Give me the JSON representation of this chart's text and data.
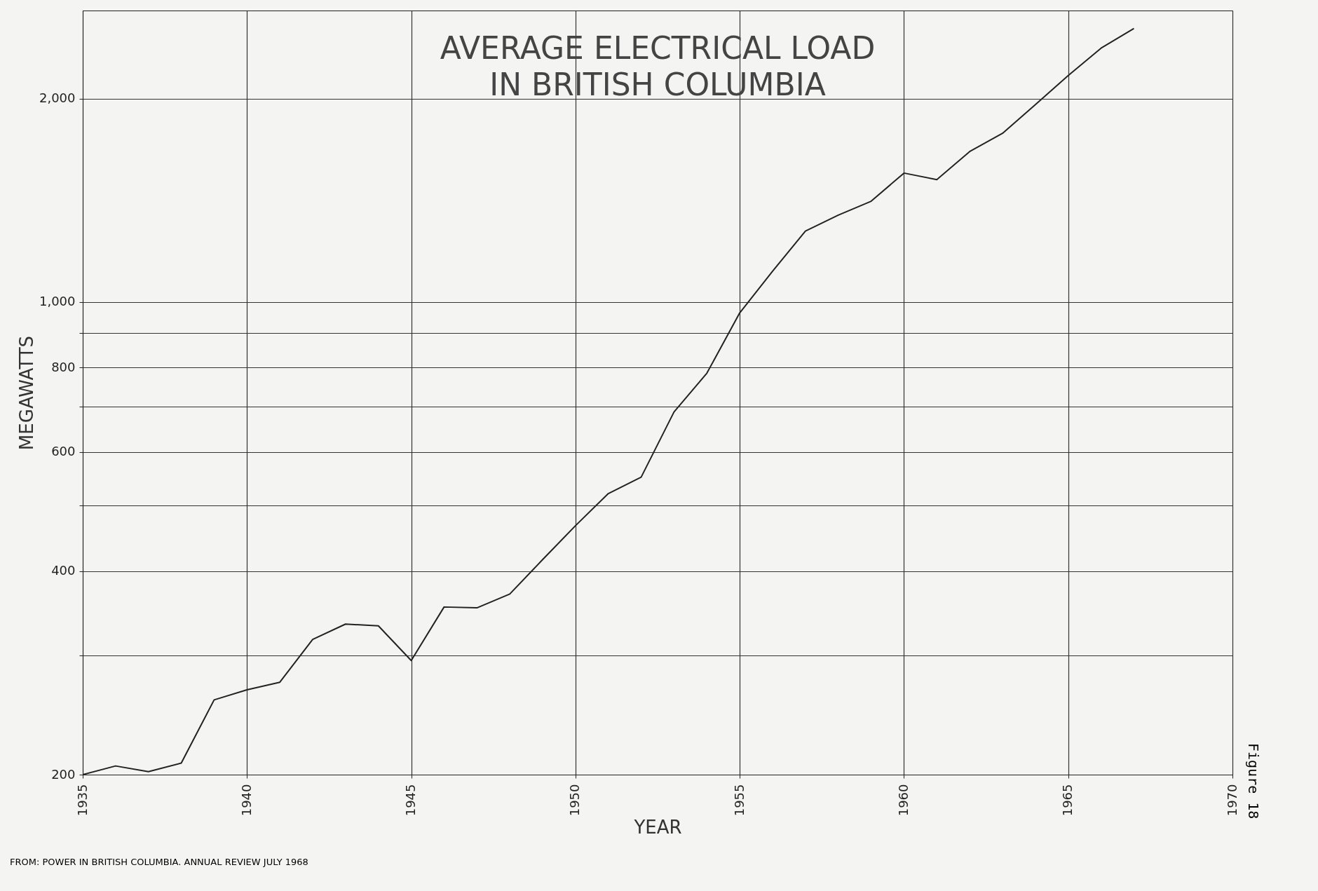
{
  "chart_data": {
    "type": "line",
    "title": "AVERAGE ELECTRICAL LOAD\nIN BRITISH COLUMBIA",
    "xlabel": "YEAR",
    "ylabel": "MEGAWATTS",
    "x": [
      1935,
      1936,
      1937,
      1938,
      1939,
      1940,
      1941,
      1942,
      1943,
      1944,
      1945,
      1946,
      1947,
      1948,
      1949,
      1950,
      1951,
      1952,
      1953,
      1954,
      1955,
      1956,
      1957,
      1958,
      1959,
      1960,
      1961,
      1962,
      1963,
      1964,
      1965,
      1966,
      1967
    ],
    "series": [
      {
        "color": "#222222",
        "values": [
          200,
          206,
          202,
          208,
          258,
          267,
          274,
          317,
          334,
          332,
          295,
          354,
          353,
          370,
          416,
          467,
          521,
          551,
          688,
          785,
          964,
          1111,
          1274,
          1345,
          1410,
          1552,
          1518,
          1670,
          1777,
          1959,
          2164,
          2375,
          2540
        ]
      }
    ],
    "xlim": [
      1935,
      1970
    ],
    "xticks": [
      1935,
      1940,
      1945,
      1950,
      1955,
      1960,
      1965,
      1970
    ],
    "log": true,
    "ylim": [
      200,
      2700
    ],
    "yticks": [
      200,
      {
        "value": 300,
        "label": null
      },
      400,
      {
        "value": 500,
        "label": null
      },
      600,
      {
        "value": 700,
        "label": null
      },
      800,
      {
        "value": 900,
        "label": null
      },
      {
        "value": 1000,
        "label": "1,000"
      },
      {
        "value": 2000,
        "label": "2,000"
      }
    ],
    "grid": true,
    "marker": "none",
    "line_style": "solid",
    "annotations": [
      "FROM: POWER IN BRITISH COLUMBIA. ANNUAL REVIEW JULY 1968",
      "Figure 18"
    ]
  }
}
